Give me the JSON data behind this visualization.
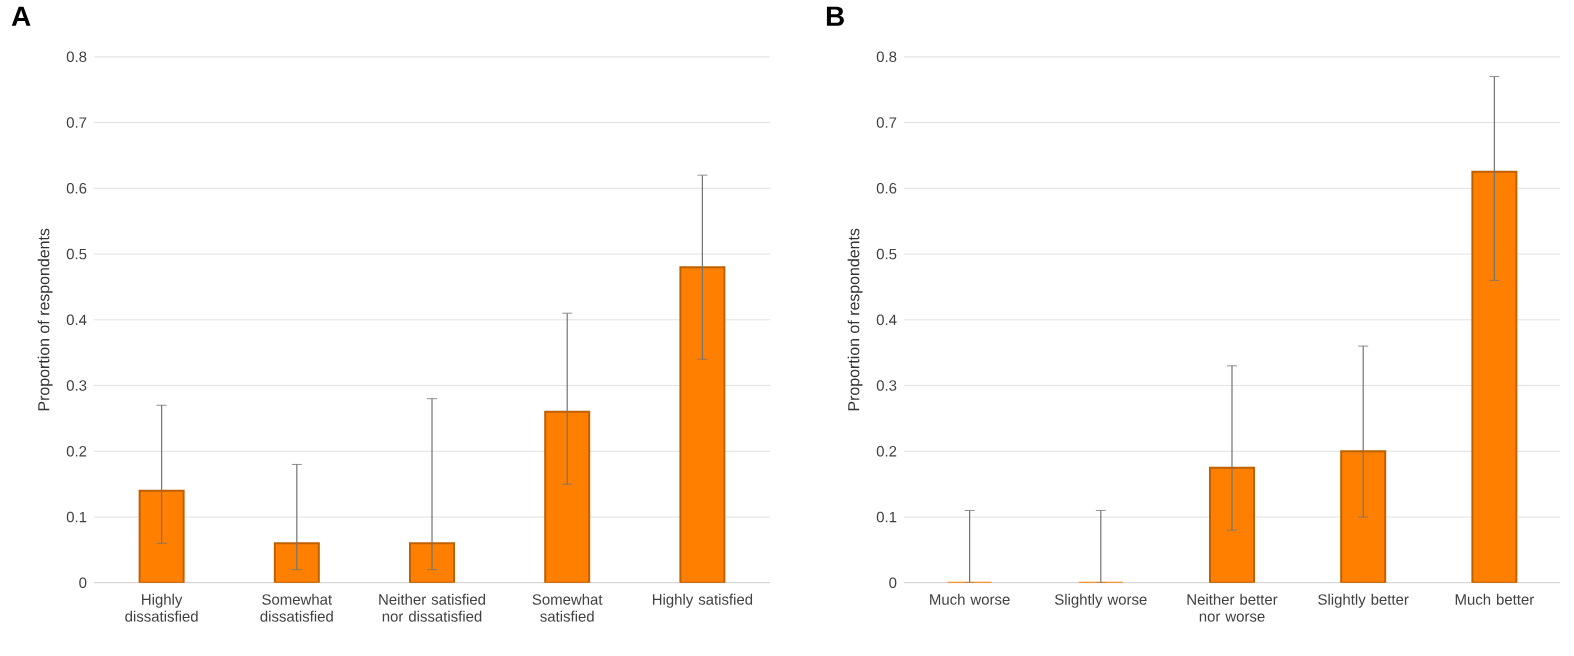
{
  "chart_data": [
    {
      "type": "bar",
      "title": "A",
      "ylabel": "Proportion of respondents",
      "categories": [
        "Highly dissatisfied",
        "Somewhat dissatisfied",
        "Neither satisfied nor dissatisfied",
        "Somewhat satisfied",
        "Highly satisfied"
      ],
      "values": [
        0.14,
        0.06,
        0.06,
        0.26,
        0.48
      ],
      "errors": [
        [
          0.06,
          0.27
        ],
        [
          0.02,
          0.18
        ],
        [
          0.02,
          0.28
        ],
        [
          0.15,
          0.41
        ],
        [
          0.34,
          0.62
        ]
      ],
      "color": "#ff8000",
      "ylim": [
        0,
        0.8
      ],
      "yticks": [
        0,
        0.1,
        0.2,
        0.3,
        0.4,
        0.5,
        0.6,
        0.7,
        0.8
      ],
      "grid": "y"
    },
    {
      "type": "bar",
      "title": "B",
      "ylabel": "Proportion of respondents",
      "categories": [
        "Much worse",
        "Slightly worse",
        "Neither better nor worse",
        "Slightly better",
        "Much better"
      ],
      "values": [
        0,
        0,
        0.175,
        0.2,
        0.625
      ],
      "errors": [
        [
          0,
          0.11
        ],
        [
          0,
          0.11
        ],
        [
          0.08,
          0.33
        ],
        [
          0.1,
          0.36
        ],
        [
          0.46,
          0.77
        ]
      ],
      "color": "#ff8000",
      "ylim": [
        0,
        0.8
      ],
      "yticks": [
        0,
        0.1,
        0.2,
        0.3,
        0.4,
        0.5,
        0.6,
        0.7,
        0.8
      ],
      "grid": "y"
    }
  ]
}
